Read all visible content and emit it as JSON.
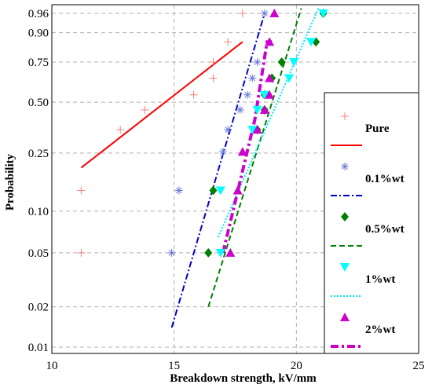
{
  "chart_data": {
    "type": "scatter",
    "title": "",
    "xlabel": "Breakdown strength, kV/mm",
    "ylabel": "Probability",
    "xlim": [
      10,
      25
    ],
    "y_scale": "weibull",
    "ylim": [
      0.008,
      0.97
    ],
    "x_ticks": [
      "10",
      "15",
      "20",
      "25"
    ],
    "y_ticks": [
      "0.01",
      "0.02",
      "0.05",
      "0.10",
      "0.25",
      "0.50",
      "0.75",
      "0.90",
      "0.96"
    ],
    "grid": true,
    "legend_position": "right",
    "series": [
      {
        "name": "Pure",
        "marker": "plus",
        "marker_color": "#f08080",
        "line_color": "#ff0000",
        "line_style": "solid",
        "points": [
          [
            11.2,
            0.05
          ],
          [
            11.2,
            0.14
          ],
          [
            12.8,
            0.35
          ],
          [
            13.8,
            0.455
          ],
          [
            15.8,
            0.545
          ],
          [
            16.6,
            0.65
          ],
          [
            16.6,
            0.75
          ],
          [
            17.2,
            0.86
          ],
          [
            17.8,
            0.96
          ]
        ],
        "fit": [
          [
            11.2,
            0.2
          ],
          [
            17.8,
            0.86
          ]
        ]
      },
      {
        "name": "0.1%wt",
        "marker": "asterisk",
        "marker_color": "#6a7ad8",
        "line_color": "#0000cc",
        "line_style": "dashdot",
        "points": [
          [
            14.9,
            0.05
          ],
          [
            15.2,
            0.14
          ],
          [
            17.2,
            0.35
          ],
          [
            17.0,
            0.255
          ],
          [
            17.7,
            0.455
          ],
          [
            18.0,
            0.545
          ],
          [
            18.2,
            0.65
          ],
          [
            18.4,
            0.75
          ],
          [
            18.7,
            0.96
          ]
        ],
        "fit": [
          [
            14.9,
            0.014
          ],
          [
            18.7,
            0.96
          ]
        ]
      },
      {
        "name": "0.5%wt",
        "marker": "diamond",
        "marker_color": "#008000",
        "line_color": "#008000",
        "line_style": "dashed",
        "points": [
          [
            16.4,
            0.05
          ],
          [
            16.6,
            0.14
          ],
          [
            18.4,
            0.35
          ],
          [
            18.7,
            0.455
          ],
          [
            18.7,
            0.545
          ],
          [
            19.0,
            0.65
          ],
          [
            19.4,
            0.75
          ],
          [
            20.8,
            0.86
          ],
          [
            21.1,
            0.96
          ]
        ],
        "fit": [
          [
            16.4,
            0.02
          ],
          [
            20.2,
            0.97
          ]
        ]
      },
      {
        "name": "1%wt",
        "marker": "triangle-down",
        "marker_color": "#00ffff",
        "line_color": "#00e5ff",
        "line_style": "dotted",
        "points": [
          [
            16.9,
            0.05
          ],
          [
            16.9,
            0.14
          ],
          [
            18.2,
            0.35
          ],
          [
            18.4,
            0.455
          ],
          [
            18.7,
            0.545
          ],
          [
            19.7,
            0.65
          ],
          [
            19.9,
            0.75
          ],
          [
            20.6,
            0.86
          ],
          [
            21.1,
            0.96
          ]
        ],
        "fit": [
          [
            16.8,
            0.065
          ],
          [
            20.9,
            0.97
          ]
        ]
      },
      {
        "name": "2%wt",
        "marker": "triangle-up",
        "marker_color": "#cc00cc",
        "line_color": "#cc00cc",
        "line_style": "dashdot-thick",
        "points": [
          [
            17.3,
            0.05
          ],
          [
            17.6,
            0.14
          ],
          [
            17.8,
            0.255
          ],
          [
            18.4,
            0.35
          ],
          [
            18.7,
            0.455
          ],
          [
            18.9,
            0.545
          ],
          [
            18.9,
            0.65
          ],
          [
            18.9,
            0.86
          ],
          [
            19.1,
            0.96
          ]
        ],
        "fit": [
          [
            17.0,
            0.05
          ],
          [
            18.3,
            0.4
          ],
          [
            18.8,
            0.86
          ],
          [
            19.0,
            0.86
          ]
        ]
      }
    ]
  }
}
